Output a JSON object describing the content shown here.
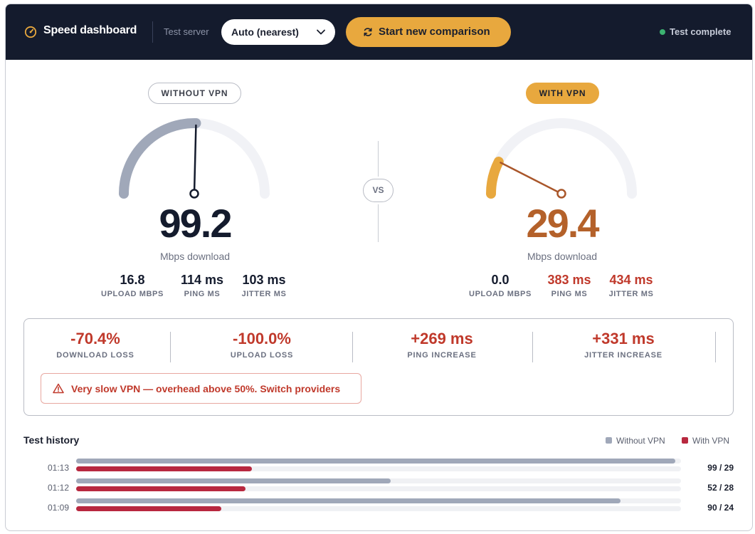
{
  "header": {
    "title": "Speed dashboard",
    "server_label": "Test server",
    "server_value": "Auto (nearest)",
    "start_button": "Start new comparison",
    "status": "Test complete"
  },
  "without_vpn": {
    "label": "WITHOUT VPN",
    "download": "99.2",
    "unit": "Mbps download",
    "upload": "16.8",
    "upload_label": "UPLOAD MBPS",
    "ping": "114 ms",
    "ping_label": "PING MS",
    "jitter": "103 ms",
    "jitter_label": "JITTER MS",
    "gauge_fraction": 0.508
  },
  "with_vpn": {
    "label": "WITH VPN",
    "download": "29.4",
    "unit": "Mbps download",
    "upload": "0.0",
    "upload_label": "UPLOAD MBPS",
    "ping": "383 ms",
    "ping_label": "PING MS",
    "jitter": "434 ms",
    "jitter_label": "JITTER MS",
    "gauge_fraction": 0.15
  },
  "vs_label": "VS",
  "losses": [
    {
      "value": "-70.4%",
      "label": "DOWNLOAD LOSS"
    },
    {
      "value": "-100.0%",
      "label": "UPLOAD LOSS"
    },
    {
      "value": "+269 ms",
      "label": "PING INCREASE"
    },
    {
      "value": "+331 ms",
      "label": "JITTER INCREASE"
    }
  ],
  "warning": "Very slow VPN — overhead above 50%. Switch providers",
  "history": {
    "title": "Test history",
    "legend": [
      "Without VPN",
      "With VPN"
    ],
    "max": 100,
    "rows": [
      {
        "time": "01:13",
        "without": 99,
        "with": 29,
        "score": "99 / 29"
      },
      {
        "time": "01:12",
        "without": 52,
        "with": 28,
        "score": "52 / 28"
      },
      {
        "time": "01:09",
        "without": 90,
        "with": 24,
        "score": "90 / 24"
      }
    ]
  },
  "colors": {
    "accent": "#e8a83e",
    "bad": "#c0392b",
    "vpn_bar": "#b8283f",
    "novpn_bar": "#a0a8b9",
    "topbar": "#141b2d"
  }
}
